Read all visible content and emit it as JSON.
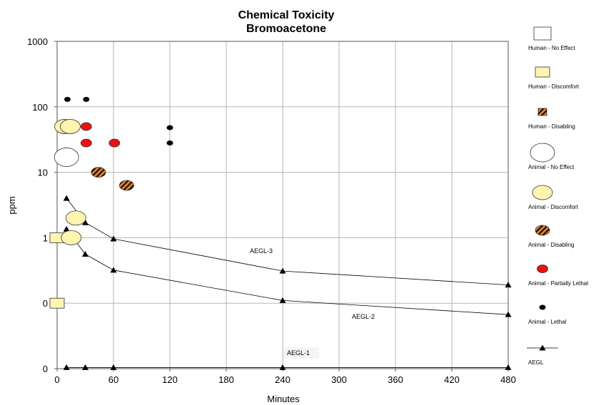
{
  "chart_data": {
    "type": "scatter",
    "title": "Chemical Toxicity",
    "subtitle": "Bromoacetone",
    "xlabel": "Minutes",
    "ylabel": "ppm",
    "xlim": [
      0,
      480
    ],
    "x_ticks": [
      0,
      60,
      120,
      180,
      240,
      300,
      360,
      420,
      480
    ],
    "y_scale": "log",
    "y_tick_labels": [
      "1000",
      "100",
      "10",
      "1",
      "0",
      "0",
      "0"
    ],
    "grid": true,
    "legend_position": "right",
    "legend": [
      {
        "label": "Human - No Effect",
        "icon": "open-square"
      },
      {
        "label": "Human - Discomfort",
        "icon": "yellow-square"
      },
      {
        "label": "Human - Disabling",
        "icon": "striped-square"
      },
      {
        "label": "Animal - No Effect",
        "icon": "open-ellipse"
      },
      {
        "label": "Animal - Discomfort",
        "icon": "yellow-ellipse"
      },
      {
        "label": "Animal - Disabling",
        "icon": "striped-ellipse"
      },
      {
        "label": "Animal - Partially Lethal",
        "icon": "red-ellipse"
      },
      {
        "label": "Animal - Lethal",
        "icon": "black-dot"
      },
      {
        "label": "AEGL",
        "icon": "triangle-line"
      }
    ],
    "series": [
      {
        "name": "Human - Discomfort",
        "color": "#FFF5B0",
        "points": [
          {
            "x": 0,
            "y": 1.0
          },
          {
            "x": 0,
            "y": 0.1
          }
        ]
      },
      {
        "name": "Animal - No Effect",
        "color": "#FFFFFF",
        "points": [
          {
            "x": 10,
            "y": 17
          }
        ]
      },
      {
        "name": "Animal - Discomfort",
        "color": "#FFF5B0",
        "points": [
          {
            "x": 8,
            "y": 50
          },
          {
            "x": 14,
            "y": 50
          },
          {
            "x": 20,
            "y": 2.0
          },
          {
            "x": 15,
            "y": 1.0
          }
        ]
      },
      {
        "name": "Animal - Disabling",
        "color": "#E8822A",
        "points": [
          {
            "x": 44,
            "y": 10
          },
          {
            "x": 74,
            "y": 6.3
          }
        ]
      },
      {
        "name": "Animal - Partially Lethal",
        "color": "#EE1111",
        "points": [
          {
            "x": 31,
            "y": 50
          },
          {
            "x": 31,
            "y": 28
          },
          {
            "x": 61,
            "y": 28
          }
        ]
      },
      {
        "name": "Animal - Lethal",
        "color": "#000000",
        "points": [
          {
            "x": 11,
            "y": 130
          },
          {
            "x": 31,
            "y": 130
          },
          {
            "x": 120,
            "y": 48
          },
          {
            "x": 120,
            "y": 28
          }
        ]
      },
      {
        "name": "AEGL-3",
        "color": "#000000",
        "line": true,
        "points": [
          {
            "x": 10,
            "y": 4.0
          },
          {
            "x": 30,
            "y": 1.7
          },
          {
            "x": 60,
            "y": 0.96
          },
          {
            "x": 240,
            "y": 0.31
          },
          {
            "x": 480,
            "y": 0.19
          }
        ]
      },
      {
        "name": "AEGL-2",
        "color": "#000000",
        "line": true,
        "points": [
          {
            "x": 10,
            "y": 1.35
          },
          {
            "x": 30,
            "y": 0.56
          },
          {
            "x": 60,
            "y": 0.32
          },
          {
            "x": 240,
            "y": 0.11
          },
          {
            "x": 480,
            "y": 0.067
          }
        ]
      },
      {
        "name": "AEGL-1",
        "color": "#000000",
        "line": true,
        "points": [
          {
            "x": 10,
            "y": 0.0104
          },
          {
            "x": 30,
            "y": 0.0104
          },
          {
            "x": 60,
            "y": 0.0104
          },
          {
            "x": 240,
            "y": 0.0104
          },
          {
            "x": 480,
            "y": 0.0104
          }
        ]
      }
    ],
    "annotations": [
      "AEGL-3",
      "AEGL-2",
      "AEGL-1"
    ]
  }
}
